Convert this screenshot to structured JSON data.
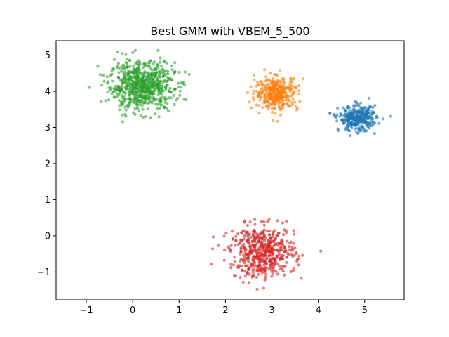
{
  "chart_data": {
    "type": "scatter",
    "title": "Best GMM with VBEM_5_500",
    "xlabel": "",
    "ylabel": "",
    "xlim": [
      -1.65,
      5.85
    ],
    "ylim": [
      -1.77,
      5.4
    ],
    "xticks": [
      -1,
      0,
      1,
      2,
      3,
      4,
      5
    ],
    "yticks": [
      -1,
      0,
      1,
      2,
      3,
      4,
      5
    ],
    "grid": false,
    "legend": "none",
    "point_opacity": 0.6,
    "clusters": [
      {
        "color": "#2ca02c",
        "mean": [
          0.2,
          4.15
        ],
        "std": [
          0.35,
          0.33
        ],
        "count": 700
      },
      {
        "color": "#ff7f0e",
        "mean": [
          3.1,
          3.95
        ],
        "std": [
          0.23,
          0.23
        ],
        "count": 360
      },
      {
        "color": "#1f77b4",
        "mean": [
          4.85,
          3.25
        ],
        "std": [
          0.2,
          0.17
        ],
        "count": 330
      },
      {
        "color": "#d62728",
        "mean": [
          2.8,
          -0.45
        ],
        "std": [
          0.35,
          0.35
        ],
        "count": 520
      }
    ]
  }
}
